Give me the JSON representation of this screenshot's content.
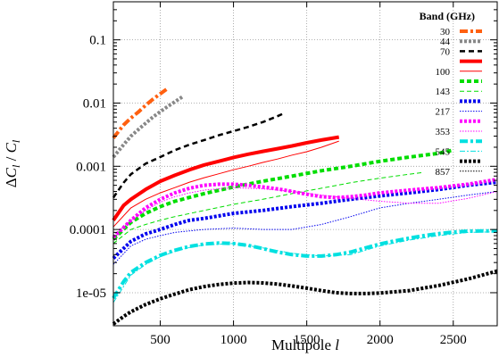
{
  "chart_data": {
    "type": "line",
    "xlabel_main": "Multipole ",
    "xlabel_var": "l",
    "ylabel_parts": [
      "Δ",
      "C",
      "l",
      " / ",
      "C",
      "l"
    ],
    "xlim": [
      180,
      2800
    ],
    "ylim": [
      3e-06,
      0.4
    ],
    "yscale": "log",
    "grid": true,
    "x_ticks": [
      500,
      1000,
      1500,
      2000,
      2500
    ],
    "x_tick_labels": [
      "500",
      "1000",
      "1500",
      "2000",
      "2500"
    ],
    "y_ticks": [
      0.1,
      0.01,
      0.001,
      0.0001,
      1e-05
    ],
    "y_tick_labels": [
      "0.1",
      "0.01",
      "0.001",
      "0.0001",
      "1e-05"
    ],
    "legend_title": "Band (GHz)",
    "legend_placement": "top-right",
    "series": [
      {
        "name": "30",
        "color": "#ff6010",
        "style": "thick-dashdot",
        "x": [
          180,
          250,
          300,
          350,
          400,
          450,
          500,
          550
        ],
        "y": [
          0.0028,
          0.0045,
          0.0058,
          0.0072,
          0.0092,
          0.0115,
          0.014,
          0.017
        ]
      },
      {
        "name": "44",
        "color": "#888888",
        "style": "thick-dot",
        "x": [
          180,
          250,
          300,
          350,
          400,
          450,
          500,
          550,
          600,
          650
        ],
        "y": [
          0.0014,
          0.0022,
          0.003,
          0.0038,
          0.0048,
          0.006,
          0.0073,
          0.0088,
          0.0105,
          0.0125
        ]
      },
      {
        "name": "70",
        "color": "#000000",
        "style": "dashed",
        "x": [
          180,
          250,
          300,
          400,
          500,
          600,
          700,
          800,
          900,
          1000,
          1100,
          1200,
          1300,
          1340
        ],
        "y": [
          0.00032,
          0.00055,
          0.00075,
          0.0011,
          0.0014,
          0.0018,
          0.0022,
          0.0026,
          0.0031,
          0.0036,
          0.0042,
          0.005,
          0.0062,
          0.0068
        ]
      },
      {
        "name": "",
        "color": "#ff0000",
        "style": "thick-solid",
        "x": [
          180,
          250,
          300,
          400,
          500,
          600,
          700,
          800,
          900,
          1000,
          1100,
          1200,
          1300,
          1400,
          1500,
          1600,
          1720
        ],
        "y": [
          0.00014,
          0.00024,
          0.0003,
          0.00043,
          0.00058,
          0.00072,
          0.00088,
          0.00105,
          0.0012,
          0.00138,
          0.00155,
          0.00172,
          0.0019,
          0.0021,
          0.00235,
          0.0026,
          0.0029
        ]
      },
      {
        "name": "100",
        "color": "#ff0000",
        "style": "thin-solid",
        "x": [
          180,
          300,
          400,
          500,
          600,
          700,
          800,
          900,
          1000,
          1100,
          1200,
          1300,
          1400,
          1500,
          1600,
          1720
        ],
        "y": [
          0.00011,
          0.00022,
          0.0003,
          0.00038,
          0.00046,
          0.00056,
          0.00066,
          0.00076,
          0.00088,
          0.001,
          0.00115,
          0.0013,
          0.0015,
          0.0017,
          0.002,
          0.0025
        ]
      },
      {
        "name": "",
        "color": "#00dd00",
        "style": "thick-dash",
        "x": [
          180,
          300,
          400,
          500,
          600,
          800,
          1000,
          1200,
          1400,
          1600,
          1800,
          2000,
          2200,
          2400,
          2500
        ],
        "y": [
          7e-05,
          0.00013,
          0.00018,
          0.00023,
          0.00028,
          0.00037,
          0.00047,
          0.00058,
          0.0007,
          0.00085,
          0.001,
          0.0012,
          0.0014,
          0.0016,
          0.0018
        ]
      },
      {
        "name": "143",
        "color": "#00dd00",
        "style": "thin-dash",
        "x": [
          180,
          300,
          400,
          500,
          600,
          800,
          1000,
          1200,
          1400,
          1600,
          1800,
          2000,
          2200,
          2300
        ],
        "y": [
          6e-05,
          0.0001,
          0.00012,
          0.00014,
          0.00016,
          0.0002,
          0.00025,
          0.0003,
          0.00037,
          0.00045,
          0.00055,
          0.00065,
          0.00075,
          0.0008
        ]
      },
      {
        "name": "",
        "color": "#0000ee",
        "style": "thick-dot",
        "x": [
          180,
          300,
          400,
          500,
          600,
          700,
          800,
          1000,
          1200,
          1400,
          1600,
          1800,
          2000,
          2200,
          2400,
          2600,
          2800
        ],
        "y": [
          3.5e-05,
          6.5e-05,
          8.5e-05,
          0.0001,
          0.00012,
          0.00014,
          0.00015,
          0.00018,
          0.0002,
          0.00023,
          0.00026,
          0.0003,
          0.00034,
          0.00038,
          0.00043,
          0.0005,
          0.00056
        ]
      },
      {
        "name": "217",
        "color": "#0000ee",
        "style": "thin-dot",
        "x": [
          180,
          300,
          400,
          500,
          600,
          700,
          800,
          1000,
          1200,
          1400,
          1600,
          1800,
          2000,
          2200,
          2400,
          2600,
          2800
        ],
        "y": [
          2.8e-05,
          5.5e-05,
          7e-05,
          8e-05,
          9e-05,
          9.5e-05,
          0.0001,
          0.000105,
          0.0001,
          0.0001,
          0.00012,
          0.00016,
          0.00022,
          0.00026,
          0.0003,
          0.00035,
          0.0004
        ]
      },
      {
        "name": "",
        "color": "#ff00ff",
        "style": "thick-dot",
        "x": [
          180,
          300,
          400,
          500,
          600,
          700,
          800,
          900,
          1000,
          1100,
          1200,
          1300,
          1400,
          1500,
          1600,
          1700,
          1800,
          1900,
          2000,
          2200,
          2400,
          2600,
          2800
        ],
        "y": [
          7.5e-05,
          0.00014,
          0.00022,
          0.0003,
          0.00038,
          0.00045,
          0.0005,
          0.00052,
          0.00052,
          0.0005,
          0.00047,
          0.00044,
          0.0004,
          0.00036,
          0.00033,
          0.00032,
          0.00033,
          0.00035,
          0.00038,
          0.00042,
          0.00046,
          0.00052,
          0.00062
        ]
      },
      {
        "name": "353",
        "color": "#ff00ff",
        "style": "thin-dot",
        "x": [
          180,
          300,
          400,
          500,
          600,
          700,
          800,
          1000,
          1200,
          1400,
          1600,
          1800,
          2000,
          2200,
          2400,
          2600,
          2800
        ],
        "y": [
          8e-05,
          0.00014,
          0.0002,
          0.00027,
          0.00033,
          0.00038,
          0.00042,
          0.00046,
          0.00044,
          0.0004,
          0.00035,
          0.00031,
          0.00028,
          0.00026,
          0.00026,
          0.00031,
          0.0004
        ]
      },
      {
        "name": "",
        "color": "#00e0e0",
        "style": "thick-dashdot",
        "x": [
          180,
          250,
          300,
          400,
          500,
          600,
          700,
          800,
          900,
          1000,
          1100,
          1200,
          1300,
          1400,
          1500,
          1600,
          1700,
          1800,
          1900,
          2000,
          2100,
          2200,
          2300,
          2400,
          2500,
          2600,
          2700,
          2800
        ],
        "y": [
          8.2e-06,
          1.5e-05,
          2.1e-05,
          3e-05,
          3.9e-05,
          4.7e-05,
          5.4e-05,
          5.9e-05,
          6.1e-05,
          6e-05,
          5.6e-05,
          5e-05,
          4.4e-05,
          4e-05,
          3.8e-05,
          3.8e-05,
          4e-05,
          4.4e-05,
          5.1e-05,
          5.9e-05,
          6.6e-05,
          7.3e-05,
          8e-05,
          8.6e-05,
          9.1e-05,
          9.4e-05,
          9.5e-05,
          9.5e-05
        ]
      },
      {
        "name": "545",
        "color": "#00e0e0",
        "style": "thin-dashdot",
        "x": [
          180,
          300,
          400,
          500,
          600,
          700,
          800,
          1000,
          1200,
          1400,
          1600,
          1800,
          2000,
          2200,
          2400,
          2600,
          2800
        ],
        "y": [
          7e-06,
          1.9e-05,
          2.8e-05,
          3.7e-05,
          4.5e-05,
          5.2e-05,
          5.7e-05,
          6e-05,
          5.1e-05,
          4.2e-05,
          3.8e-05,
          4e-05,
          5.5e-05,
          6.8e-05,
          8e-05,
          9e-05,
          9.2e-05
        ]
      },
      {
        "name": "",
        "color": "#000000",
        "style": "thick-dot",
        "x": [
          180,
          250,
          300,
          400,
          500,
          600,
          700,
          800,
          900,
          1000,
          1100,
          1200,
          1300,
          1400,
          1500,
          1600,
          1700,
          1800,
          1900,
          2000,
          2200,
          2400,
          2600,
          2800
        ],
        "y": [
          3.2e-06,
          4.2e-06,
          5e-06,
          6.5e-06,
          8e-06,
          9.5e-06,
          1.12e-05,
          1.25e-05,
          1.35e-05,
          1.42e-05,
          1.45e-05,
          1.43e-05,
          1.37e-05,
          1.28e-05,
          1.18e-05,
          1.08e-05,
          1e-05,
          9.7e-06,
          9.7e-06,
          9.9e-06,
          1.08e-05,
          1.3e-05,
          1.65e-05,
          2.2e-05
        ]
      },
      {
        "name": "857",
        "color": "#000000",
        "style": "thin-dot",
        "x": [],
        "y": []
      }
    ]
  }
}
